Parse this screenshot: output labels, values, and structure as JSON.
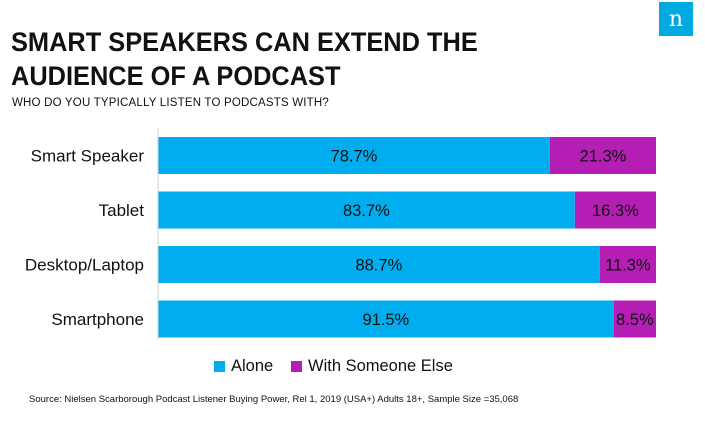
{
  "brand": {
    "logo_glyph": "n",
    "logo_color": "#00a9e0"
  },
  "header": {
    "title": "SMART SPEAKERS CAN EXTEND THE AUDIENCE OF A PODCAST",
    "subtitle": "WHO DO YOU TYPICALLY LISTEN TO PODCASTS WITH?"
  },
  "chart_data": {
    "type": "bar",
    "orientation": "horizontal",
    "stacked": true,
    "percent_stacked": true,
    "categories": [
      "Smart Speaker",
      "Tablet",
      "Desktop/Laptop",
      "Smartphone"
    ],
    "series": [
      {
        "name": "Alone",
        "color": "#00aeef",
        "values": [
          78.7,
          83.7,
          88.7,
          91.5
        ],
        "labels": [
          "78.7%",
          "83.7%",
          "88.7%",
          "91.5%"
        ]
      },
      {
        "name": "With Someone Else",
        "color": "#b41eb4",
        "values": [
          21.3,
          16.3,
          11.3,
          8.5
        ],
        "labels": [
          "21.3%",
          "16.3%",
          "11.3%",
          "8.5%"
        ]
      }
    ],
    "xlim": [
      0,
      100
    ],
    "grid": false,
    "legend_position": "bottom"
  },
  "footer": {
    "source": "Source: Nielsen Scarborough Podcast Listener Buying Power, Rel 1, 2019 (USA+) Adults 18+, Sample Size =35,068"
  }
}
